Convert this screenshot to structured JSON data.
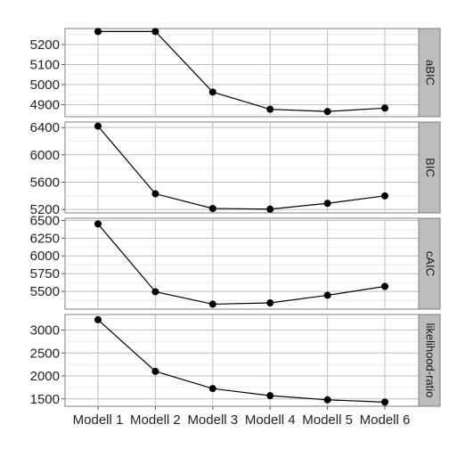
{
  "chart_data": {
    "type": "line",
    "categories": [
      "Modell 1",
      "Modell 2",
      "Modell 3",
      "Modell 4",
      "Modell 5",
      "Modell 6"
    ],
    "facets": [
      {
        "label": "aBIC",
        "values": [
          5265,
          5265,
          4963,
          4877,
          4866,
          4883
        ],
        "ylim": [
          4840,
          5280
        ],
        "ticks": [
          4900,
          5000,
          5100,
          5200
        ],
        "tick_labels": [
          "4900",
          "5000",
          "5100",
          "5200"
        ]
      },
      {
        "label": "BIC",
        "values": [
          6420,
          5430,
          5215,
          5205,
          5290,
          5400
        ],
        "ylim": [
          5150,
          6480
        ],
        "ticks": [
          5200,
          5600,
          6000,
          6400
        ],
        "tick_labels": [
          "5200",
          "5600",
          "6000",
          "6400"
        ]
      },
      {
        "label": "cAIC",
        "values": [
          6450,
          5495,
          5320,
          5338,
          5445,
          5570
        ],
        "ylim": [
          5250,
          6530
        ],
        "ticks": [
          5500,
          5750,
          6000,
          6250,
          6500
        ],
        "tick_labels": [
          "5500",
          "5750",
          "6000",
          "6250",
          "6500"
        ]
      },
      {
        "label": "likelihood-ratio",
        "values": [
          3225,
          2100,
          1725,
          1570,
          1480,
          1430
        ],
        "ylim": [
          1340,
          3340
        ],
        "ticks": [
          1500,
          2000,
          2500,
          3000
        ],
        "tick_labels": [
          "1500",
          "2000",
          "2500",
          "3000"
        ]
      }
    ],
    "grid": true,
    "colors": {
      "line": "#000000",
      "point": "#000000",
      "strip": "#bdbdbd",
      "grid": "#bfbfbf"
    }
  }
}
